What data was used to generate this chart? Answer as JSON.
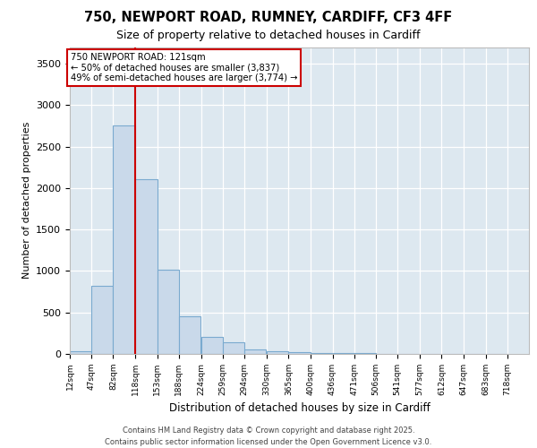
{
  "title_line1": "750, NEWPORT ROAD, RUMNEY, CARDIFF, CF3 4FF",
  "title_line2": "Size of property relative to detached houses in Cardiff",
  "xlabel": "Distribution of detached houses by size in Cardiff",
  "ylabel": "Number of detached properties",
  "bar_color": "#c9d9ea",
  "bar_edge_color": "#7aaacf",
  "background_color": "#dde8f0",
  "annotation_box_color": "#ffffff",
  "annotation_box_edge": "#cc0000",
  "vline_color": "#cc0000",
  "vline_x": 118,
  "annotation_text_line1": "750 NEWPORT ROAD: 121sqm",
  "annotation_text_line2": "← 50% of detached houses are smaller (3,837)",
  "annotation_text_line3": "49% of semi-detached houses are larger (3,774) →",
  "footer_line1": "Contains HM Land Registry data © Crown copyright and database right 2025.",
  "footer_line2": "Contains public sector information licensed under the Open Government Licence v3.0.",
  "bins": [
    12,
    47,
    82,
    118,
    153,
    188,
    224,
    259,
    294,
    330,
    365,
    400,
    436,
    471,
    506,
    541,
    577,
    612,
    647,
    683,
    718
  ],
  "counts": [
    30,
    820,
    2760,
    2110,
    1020,
    450,
    210,
    140,
    55,
    28,
    18,
    12,
    8,
    6,
    5,
    4,
    3,
    2,
    1,
    1
  ],
  "ylim": [
    0,
    3700
  ],
  "yticks": [
    0,
    500,
    1000,
    1500,
    2000,
    2500,
    3000,
    3500
  ]
}
